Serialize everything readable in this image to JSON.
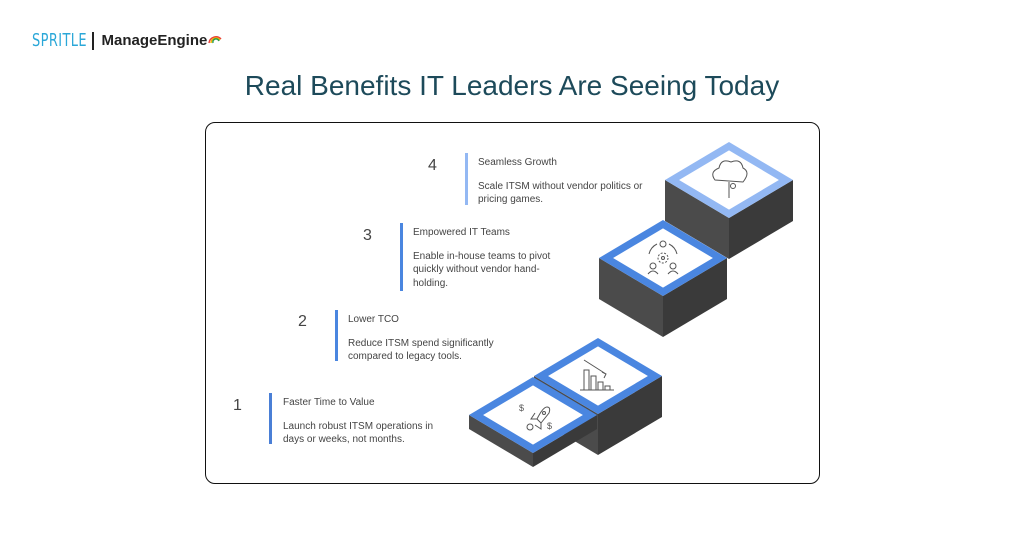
{
  "logo": {
    "sprite": "SPRITLE",
    "manageengine": "ManageEngine"
  },
  "title": "Real Benefits IT Leaders Are Seeing Today",
  "colors": {
    "accent": "#4a86e0",
    "accent_light": "#93b8f3",
    "riser_left": "#4b4b4b",
    "riser_right": "#3a3a3a",
    "title": "#1d4a5a"
  },
  "steps": [
    {
      "number": "1",
      "title": "Faster Time to Value",
      "description": "Launch robust ITSM operations in days or weeks, not months.",
      "icon": "rocket-icon"
    },
    {
      "number": "2",
      "title": "Lower TCO",
      "description": "Reduce ITSM spend significantly compared to legacy tools.",
      "icon": "declining-chart-icon"
    },
    {
      "number": "3",
      "title": "Empowered IT Teams",
      "description": "Enable in-house teams to pivot quickly without vendor hand-holding.",
      "icon": "team-gear-icon"
    },
    {
      "number": "4",
      "title": "Seamless Growth",
      "description": "Scale ITSM without vendor politics or pricing games.",
      "icon": "growing-tree-icon"
    }
  ]
}
